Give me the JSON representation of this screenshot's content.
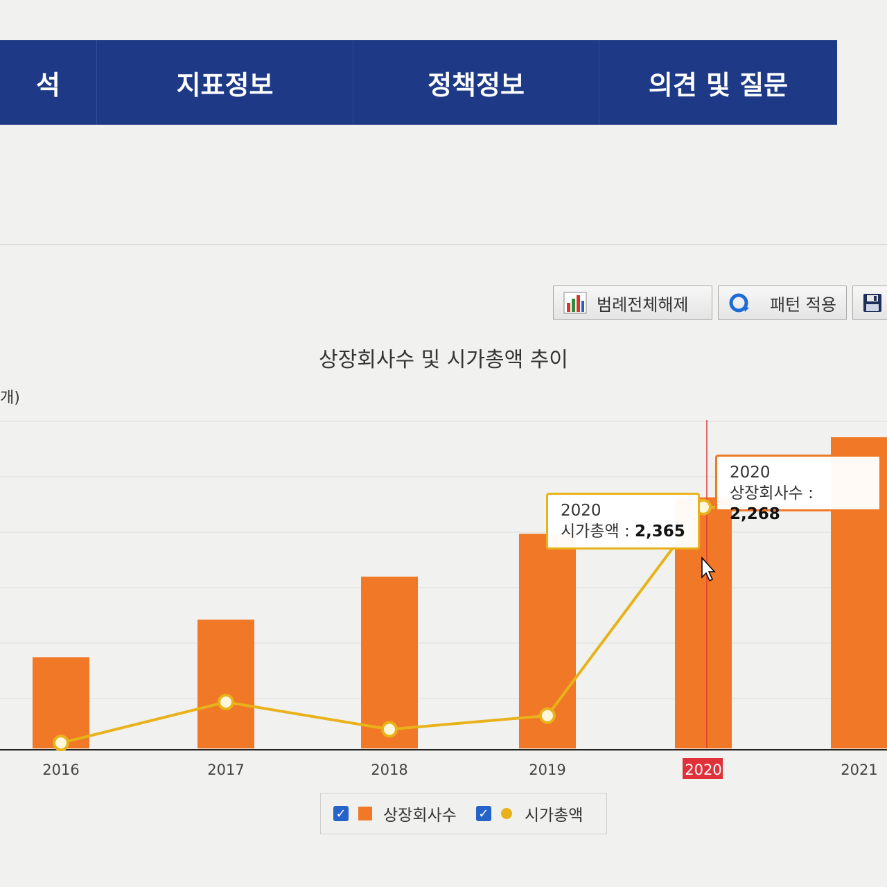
{
  "nav": {
    "items": [
      {
        "label": "석",
        "width": 140
      },
      {
        "label": "지표정보",
        "width": 370
      },
      {
        "label": "정책정보",
        "width": 355
      },
      {
        "label": "의견 및 질문",
        "width": 343
      }
    ]
  },
  "toolbar": {
    "legend_clear_label": "범례전체해제",
    "pattern_label": "패턴 적용"
  },
  "colors": {
    "nav_bg": "#1e3a86",
    "bar": "#f07826",
    "line": "#e8b21a",
    "crosshair": "#e03a3a"
  },
  "chart_data": {
    "type": "bar",
    "title": "상장회사수 및 시가총액 추이",
    "unit_label": "개)",
    "categories": [
      "2016",
      "2017",
      "2018",
      "2019",
      "2020",
      "2021"
    ],
    "series": [
      {
        "name": "상장회사수",
        "type": "bar",
        "values": [
          1970,
          2040,
          2120,
          2200,
          2268,
          2380
        ]
      },
      {
        "name": "시가총액",
        "type": "line",
        "values": [
          1500,
          1650,
          1550,
          1600,
          2365,
          null
        ]
      }
    ],
    "highlight_category": "2020",
    "tooltips": [
      {
        "year": "2020",
        "series": "시가총액",
        "label": "시가총액 : ",
        "value": "2,365"
      },
      {
        "year": "2020",
        "series": "상장회사수",
        "label": "상장회사수 : ",
        "value": "2,268"
      }
    ],
    "legend": {
      "placement": "bottom-center"
    },
    "grid": true
  }
}
